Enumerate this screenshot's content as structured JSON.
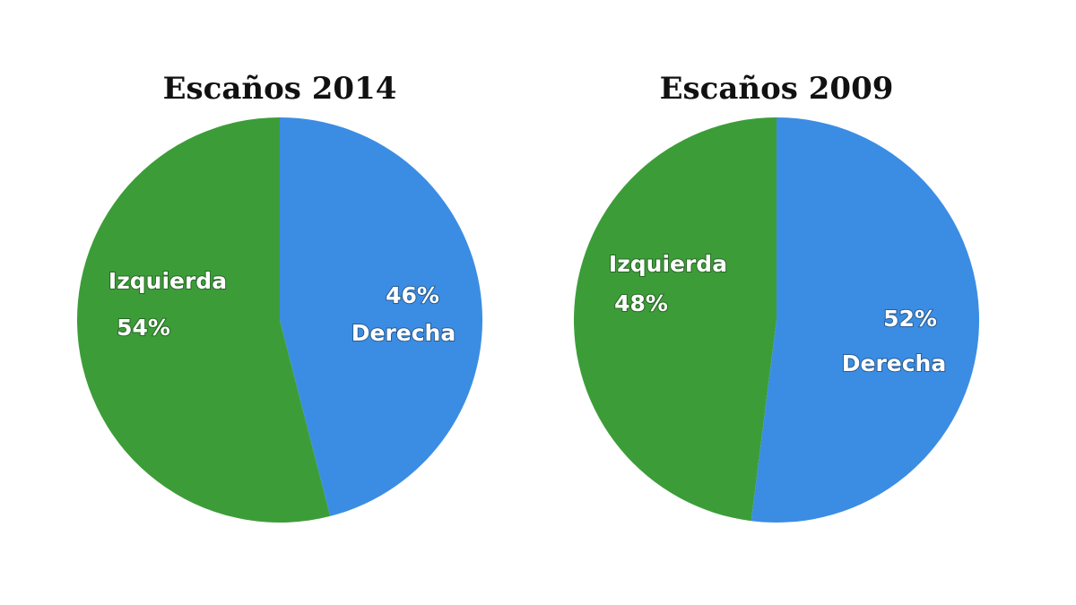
{
  "chart_data": [
    {
      "type": "pie",
      "title": "Escaños 2014",
      "categories": [
        "Derecha",
        "Izquierda"
      ],
      "values": [
        46,
        54
      ],
      "value_labels": [
        "46%",
        "54%"
      ],
      "colors": [
        "#3b8de3",
        "#3c9d38"
      ]
    },
    {
      "type": "pie",
      "title": "Escaños 2009",
      "categories": [
        "Derecha",
        "Izquierda"
      ],
      "values": [
        52,
        48
      ],
      "value_labels": [
        "52%",
        "48%"
      ],
      "colors": [
        "#3b8de3",
        "#3c9d38"
      ]
    }
  ]
}
